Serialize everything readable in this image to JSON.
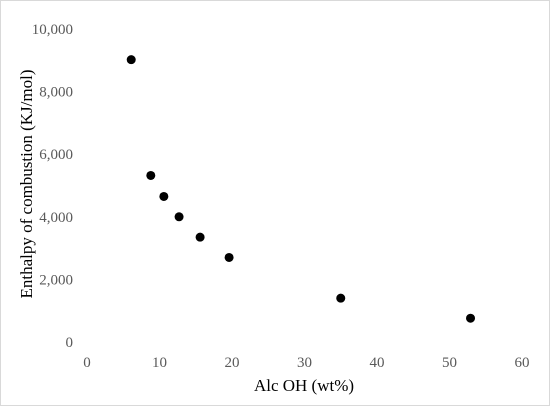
{
  "chart_data": {
    "type": "scatter",
    "title": "",
    "xlabel": "Alc OH (wt%)",
    "ylabel": "Enthalpy of combustion (KJ/mol)",
    "xlim": [
      0,
      60
    ],
    "ylim": [
      0,
      10000
    ],
    "x_ticks": [
      0,
      10,
      20,
      30,
      40,
      50,
      60
    ],
    "y_ticks": [
      0,
      2000,
      4000,
      6000,
      8000,
      10000
    ],
    "x_tick_labels": [
      "0",
      "10",
      "20",
      "30",
      "40",
      "50",
      "60"
    ],
    "y_tick_labels": [
      "0",
      "2,000",
      "4,000",
      "6,000",
      "8,000",
      "10,000"
    ],
    "grid": false,
    "legend": "none",
    "series": [
      {
        "color": "#000000",
        "points": [
          {
            "x": 6.1,
            "y": 9020
          },
          {
            "x": 8.8,
            "y": 5320
          },
          {
            "x": 10.6,
            "y": 4650
          },
          {
            "x": 12.7,
            "y": 4000
          },
          {
            "x": 15.6,
            "y": 3350
          },
          {
            "x": 19.6,
            "y": 2700
          },
          {
            "x": 35.0,
            "y": 1400
          },
          {
            "x": 52.9,
            "y": 760
          }
        ]
      }
    ]
  }
}
